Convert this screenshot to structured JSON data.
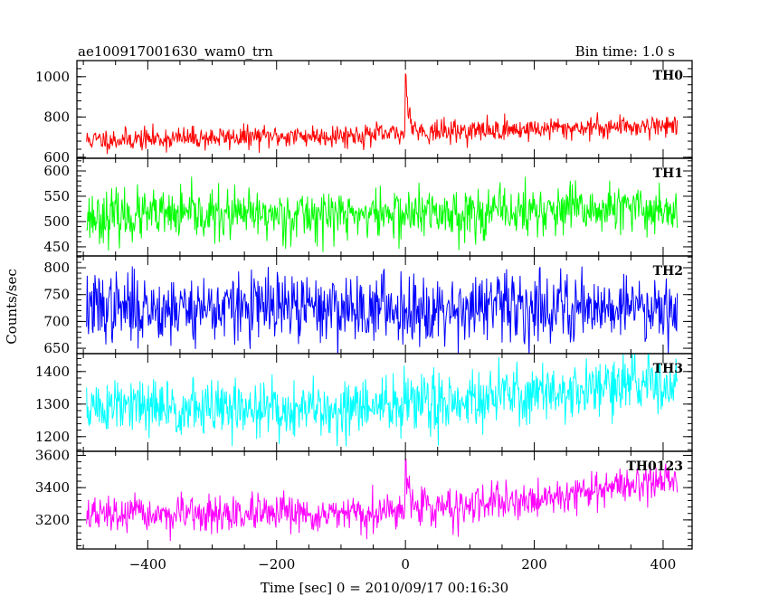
{
  "header": {
    "title": "ae100917001630_wam0_trn",
    "bin_time": "Bin time: 1.0 s"
  },
  "axes": {
    "ylabel": "Counts/sec",
    "xlabel": "Time [sec] 0 = 2010/09/17 00:16:30"
  },
  "chart_data": {
    "type": "line",
    "x_range": [
      -510,
      445
    ],
    "x_ticks": [
      -400,
      -200,
      0,
      200,
      400
    ],
    "x_tick_labels": [
      "−400",
      "−200",
      "0",
      "200",
      "400"
    ],
    "x_data_range": [
      -495,
      422
    ],
    "bin_time_s": 1.0,
    "panels": [
      {
        "name": "TH0",
        "color": "#ff0000",
        "ylim": [
          595,
          1080
        ],
        "y_ticks": [
          600,
          800,
          1000
        ],
        "y_tick_labels": [
          "600",
          "800",
          "1000"
        ],
        "baseline": [
          [
            -495,
            685
          ],
          [
            0,
            715
          ],
          [
            30,
            725
          ],
          [
            422,
            760
          ]
        ],
        "noise": 28,
        "bursts": [
          {
            "t": 0,
            "amp": 300,
            "decay": 6
          }
        ],
        "seed": 11
      },
      {
        "name": "TH1",
        "color": "#00ff00",
        "ylim": [
          432,
          625
        ],
        "y_ticks": [
          450,
          500,
          550,
          600
        ],
        "y_tick_labels": [
          "450",
          "500",
          "550",
          "600"
        ],
        "baseline": [
          [
            -495,
            510
          ],
          [
            0,
            515
          ],
          [
            422,
            525
          ]
        ],
        "noise": 25,
        "bursts": [],
        "seed": 23
      },
      {
        "name": "TH2",
        "color": "#0000ff",
        "ylim": [
          640,
          822
        ],
        "y_ticks": [
          650,
          700,
          750,
          800
        ],
        "y_tick_labels": [
          "650",
          "700",
          "750",
          "800"
        ],
        "baseline": [
          [
            -495,
            725
          ],
          [
            0,
            725
          ],
          [
            422,
            730
          ]
        ],
        "noise": 32,
        "bursts": [],
        "seed": 37
      },
      {
        "name": "TH3",
        "color": "#00ffff",
        "ylim": [
          1155,
          1455
        ],
        "y_ticks": [
          1200,
          1300,
          1400
        ],
        "y_tick_labels": [
          "1200",
          "1300",
          "1400"
        ],
        "baseline": [
          [
            -495,
            1290
          ],
          [
            -100,
            1280
          ],
          [
            0,
            1300
          ],
          [
            422,
            1370
          ]
        ],
        "noise": 45,
        "bursts": [],
        "seed": 51
      },
      {
        "name": "TH0123",
        "color": "#ff00ff",
        "ylim": [
          3020,
          3625
        ],
        "y_ticks": [
          3200,
          3400,
          3600
        ],
        "y_tick_labels": [
          "3200",
          "3400",
          "3600"
        ],
        "baseline": [
          [
            -495,
            3230
          ],
          [
            -50,
            3230
          ],
          [
            0,
            3260
          ],
          [
            150,
            3300
          ],
          [
            422,
            3460
          ]
        ],
        "noise": 55,
        "bursts": [
          {
            "t": 0,
            "amp": 300,
            "decay": 8
          }
        ],
        "seed": 67
      }
    ]
  }
}
